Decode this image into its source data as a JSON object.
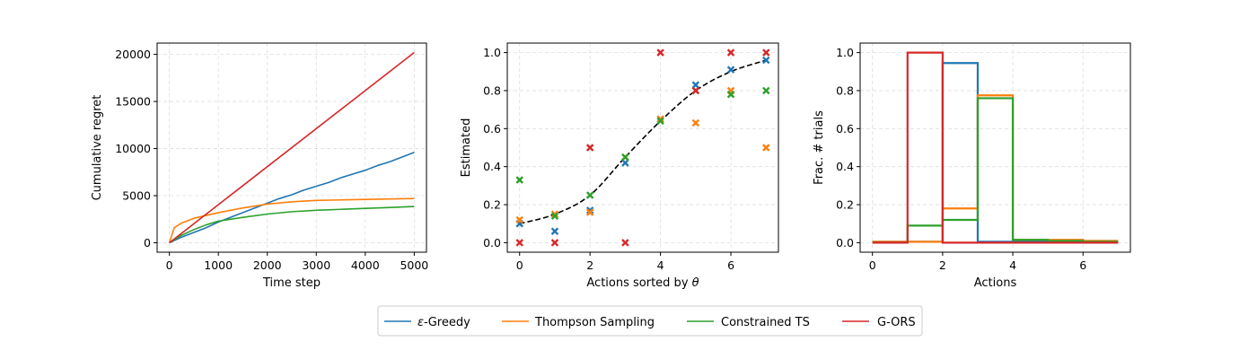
{
  "colors": {
    "eps_greedy": "#1f77b4",
    "thompson": "#ff7f0e",
    "constrained_ts": "#2ca02c",
    "g_ors": "#d62728",
    "true_curve": "#000000",
    "grid": "#dddddd"
  },
  "legend": {
    "position": "bottom-center",
    "items": [
      {
        "key": "eps_greedy",
        "label_prefix": "ε",
        "label_suffix": "-Greedy"
      },
      {
        "key": "thompson",
        "label": "Thompson Sampling"
      },
      {
        "key": "constrained_ts",
        "label": "Constrained TS"
      },
      {
        "key": "g_ors",
        "label": "G-ORS"
      }
    ]
  },
  "chart_data": [
    {
      "type": "line",
      "xlabel": "Time step",
      "ylabel": "Cumulative regret",
      "xlim": [
        -250,
        5250
      ],
      "ylim": [
        -1000,
        21200
      ],
      "xticks": [
        0,
        1000,
        2000,
        3000,
        4000,
        5000
      ],
      "yticks": [
        0,
        5000,
        10000,
        15000,
        20000
      ],
      "grid": true,
      "series": [
        {
          "key": "eps_greedy",
          "x": [
            0,
            250,
            500,
            750,
            1000,
            1250,
            1500,
            1750,
            2000,
            2250,
            2500,
            2750,
            3000,
            3250,
            3500,
            3750,
            4000,
            4250,
            4500,
            4750,
            5000
          ],
          "y": [
            0,
            600,
            1100,
            1600,
            2200,
            2700,
            3200,
            3700,
            4200,
            4700,
            5100,
            5600,
            6000,
            6400,
            6900,
            7300,
            7700,
            8200,
            8600,
            9100,
            9600
          ]
        },
        {
          "key": "thompson",
          "x": [
            0,
            100,
            250,
            500,
            750,
            1000,
            1500,
            2000,
            2500,
            3000,
            3500,
            4000,
            4500,
            5000
          ],
          "y": [
            0,
            1600,
            2100,
            2600,
            2900,
            3200,
            3700,
            4100,
            4350,
            4500,
            4550,
            4600,
            4650,
            4700
          ]
        },
        {
          "key": "constrained_ts",
          "x": [
            0,
            250,
            500,
            750,
            1000,
            1500,
            2000,
            2500,
            3000,
            3500,
            4000,
            4500,
            5000
          ],
          "y": [
            0,
            800,
            1400,
            1900,
            2300,
            2700,
            3050,
            3300,
            3450,
            3550,
            3650,
            3750,
            3850
          ]
        },
        {
          "key": "g_ors",
          "x": [
            0,
            5000
          ],
          "y": [
            0,
            20200
          ]
        }
      ]
    },
    {
      "type": "scatter",
      "xlabel_prefix": "Actions sorted by ",
      "xlabel_symbol": "θ",
      "ylabel": "Estimated",
      "xlim": [
        -0.35,
        7.35
      ],
      "ylim": [
        -0.05,
        1.05
      ],
      "xticks": [
        0,
        2,
        4,
        6
      ],
      "yticks": [
        0.0,
        0.2,
        0.4,
        0.6,
        0.8,
        1.0
      ],
      "ytick_labels": [
        "0.0",
        "0.2",
        "0.4",
        "0.6",
        "0.8",
        "1.0"
      ],
      "grid": true,
      "true_curve": {
        "x": [
          0,
          1,
          2,
          3,
          4,
          5,
          6,
          7
        ],
        "y": [
          0.1,
          0.15,
          0.25,
          0.45,
          0.64,
          0.8,
          0.9,
          0.96
        ]
      },
      "series": [
        {
          "key": "eps_greedy",
          "x": [
            0,
            1,
            2,
            3,
            4,
            5,
            6,
            7
          ],
          "y": [
            0.1,
            0.06,
            0.17,
            0.42,
            0.65,
            0.83,
            0.91,
            0.96
          ]
        },
        {
          "key": "thompson",
          "x": [
            0,
            1,
            2,
            3,
            4,
            5,
            6,
            7
          ],
          "y": [
            0.12,
            0.15,
            0.16,
            0.45,
            0.65,
            0.63,
            0.8,
            0.5
          ]
        },
        {
          "key": "constrained_ts",
          "x": [
            0,
            1,
            2,
            3,
            4,
            5,
            6,
            7
          ],
          "y": [
            0.33,
            0.14,
            0.25,
            0.45,
            0.64,
            0.8,
            0.78,
            0.8
          ]
        },
        {
          "key": "g_ors",
          "x": [
            0,
            1,
            2,
            3,
            4,
            5,
            6,
            7
          ],
          "y": [
            0.0,
            0.0,
            0.5,
            0.0,
            1.0,
            0.8,
            1.0,
            1.0
          ]
        }
      ]
    },
    {
      "type": "step",
      "xlabel": "Actions",
      "ylabel": "Frac. # trials",
      "xlim": [
        -0.35,
        7.35
      ],
      "ylim": [
        -0.05,
        1.05
      ],
      "xticks": [
        0,
        2,
        4,
        6
      ],
      "yticks": [
        0.0,
        0.2,
        0.4,
        0.6,
        0.8,
        1.0
      ],
      "ytick_labels": [
        "0.0",
        "0.2",
        "0.4",
        "0.6",
        "0.8",
        "1.0"
      ],
      "grid": true,
      "series": [
        {
          "key": "eps_greedy",
          "values": [
            0.005,
            0.005,
            0.945,
            0.005,
            0.005,
            0.005,
            0.005
          ]
        },
        {
          "key": "thompson",
          "values": [
            0.005,
            0.005,
            0.18,
            0.775,
            0.015,
            0.015,
            0.01
          ]
        },
        {
          "key": "constrained_ts",
          "values": [
            0.0,
            0.09,
            0.12,
            0.76,
            0.015,
            0.01,
            0.005
          ]
        },
        {
          "key": "g_ors",
          "values": [
            0.0,
            1.0,
            0.0,
            0.0,
            0.0,
            0.0,
            0.0
          ]
        }
      ]
    }
  ]
}
